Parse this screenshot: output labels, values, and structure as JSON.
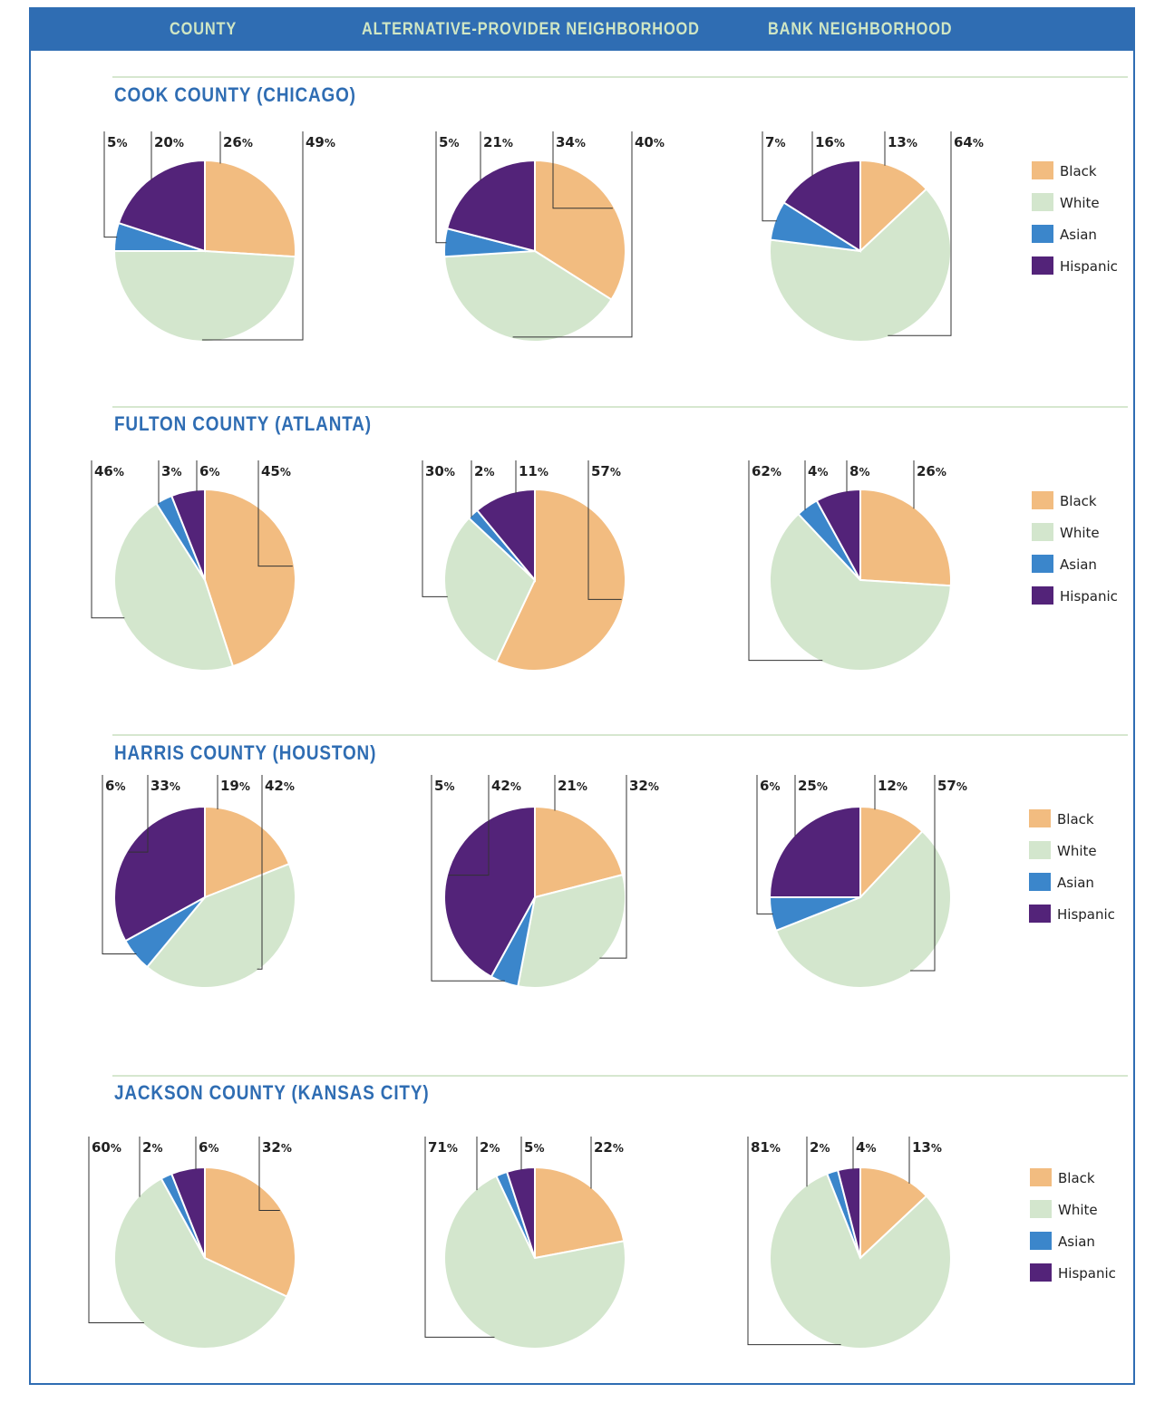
{
  "header": {
    "col_county": "COUNTY",
    "col_alt": "ALTERNATIVE-PROVIDER NEIGHBORHOOD",
    "col_bank": "BANK NEIGHBORHOOD"
  },
  "colors": {
    "Black": "#f2bc80",
    "White": "#d3e6cd",
    "Asian": "#3b86cb",
    "Hispanic": "#532379"
  },
  "legend": [
    "Black",
    "White",
    "Asian",
    "Hispanic"
  ],
  "chart_data": [
    {
      "type": "pie",
      "title": "COOK COUNTY (CHICAGO)",
      "charts": [
        {
          "name": "County",
          "labels": [
            "Black",
            "White",
            "Asian",
            "Hispanic"
          ],
          "values": [
            26,
            49,
            5,
            20
          ]
        },
        {
          "name": "Alternative-Provider Neighborhood",
          "labels": [
            "Black",
            "White",
            "Asian",
            "Hispanic"
          ],
          "values": [
            34,
            40,
            5,
            21
          ]
        },
        {
          "name": "Bank Neighborhood",
          "labels": [
            "Black",
            "White",
            "Asian",
            "Hispanic"
          ],
          "values": [
            13,
            64,
            7,
            16
          ]
        }
      ]
    },
    {
      "type": "pie",
      "title": "FULTON COUNTY (ATLANTA)",
      "charts": [
        {
          "name": "County",
          "labels": [
            "Black",
            "White",
            "Asian",
            "Hispanic"
          ],
          "values": [
            45,
            46,
            3,
            6
          ]
        },
        {
          "name": "Alternative-Provider Neighborhood",
          "labels": [
            "Black",
            "White",
            "Asian",
            "Hispanic"
          ],
          "values": [
            57,
            30,
            2,
            11
          ]
        },
        {
          "name": "Bank Neighborhood",
          "labels": [
            "Black",
            "White",
            "Asian",
            "Hispanic"
          ],
          "values": [
            26,
            62,
            4,
            8
          ]
        }
      ]
    },
    {
      "type": "pie",
      "title": "HARRIS COUNTY (HOUSTON)",
      "charts": [
        {
          "name": "County",
          "labels": [
            "Black",
            "White",
            "Asian",
            "Hispanic"
          ],
          "values": [
            19,
            42,
            6,
            33
          ]
        },
        {
          "name": "Alternative-Provider Neighborhood",
          "labels": [
            "Black",
            "White",
            "Asian",
            "Hispanic"
          ],
          "values": [
            21,
            32,
            5,
            42
          ]
        },
        {
          "name": "Bank Neighborhood",
          "labels": [
            "Black",
            "White",
            "Asian",
            "Hispanic"
          ],
          "values": [
            12,
            57,
            6,
            25
          ]
        }
      ]
    },
    {
      "type": "pie",
      "title": "JACKSON COUNTY (KANSAS CITY)",
      "charts": [
        {
          "name": "County",
          "labels": [
            "Black",
            "White",
            "Asian",
            "Hispanic"
          ],
          "values": [
            32,
            60,
            2,
            6
          ]
        },
        {
          "name": "Alternative-Provider Neighborhood",
          "labels": [
            "Black",
            "White",
            "Asian",
            "Hispanic"
          ],
          "values": [
            22,
            71,
            2,
            5
          ]
        },
        {
          "name": "Bank Neighborhood",
          "labels": [
            "Black",
            "White",
            "Asian",
            "Hispanic"
          ],
          "values": [
            13,
            81,
            2,
            4
          ]
        }
      ]
    }
  ]
}
